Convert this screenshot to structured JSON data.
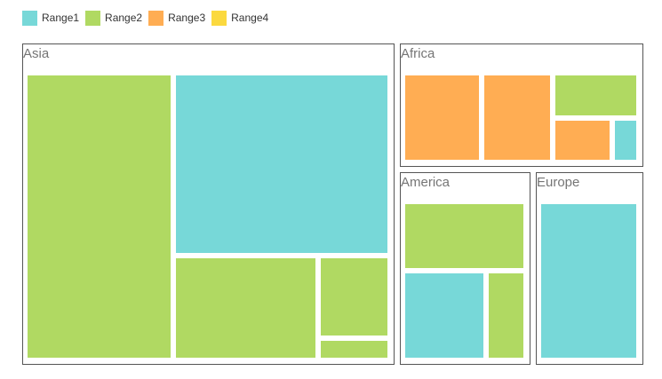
{
  "chart_data": {
    "type": "treemap",
    "legend": {
      "position": "top-left",
      "entries": [
        {
          "name": "Range1",
          "color": "#77d8d8"
        },
        {
          "name": "Range2",
          "color": "#b0d962"
        },
        {
          "name": "Range3",
          "color": "#ffad53"
        },
        {
          "name": "Range4",
          "color": "#fbd93f"
        }
      ]
    },
    "groups": [
      {
        "name": "Asia",
        "items": [
          {
            "range": "Range2"
          },
          {
            "range": "Range1"
          },
          {
            "range": "Range2"
          },
          {
            "range": "Range2"
          },
          {
            "range": "Range2"
          }
        ]
      },
      {
        "name": "Africa",
        "items": [
          {
            "range": "Range3"
          },
          {
            "range": "Range3"
          },
          {
            "range": "Range2"
          },
          {
            "range": "Range3"
          },
          {
            "range": "Range1"
          }
        ]
      },
      {
        "name": "America",
        "items": [
          {
            "range": "Range2"
          },
          {
            "range": "Range1"
          },
          {
            "range": "Range2"
          }
        ]
      },
      {
        "name": "Europe",
        "items": [
          {
            "range": "Range1"
          }
        ]
      }
    ]
  }
}
